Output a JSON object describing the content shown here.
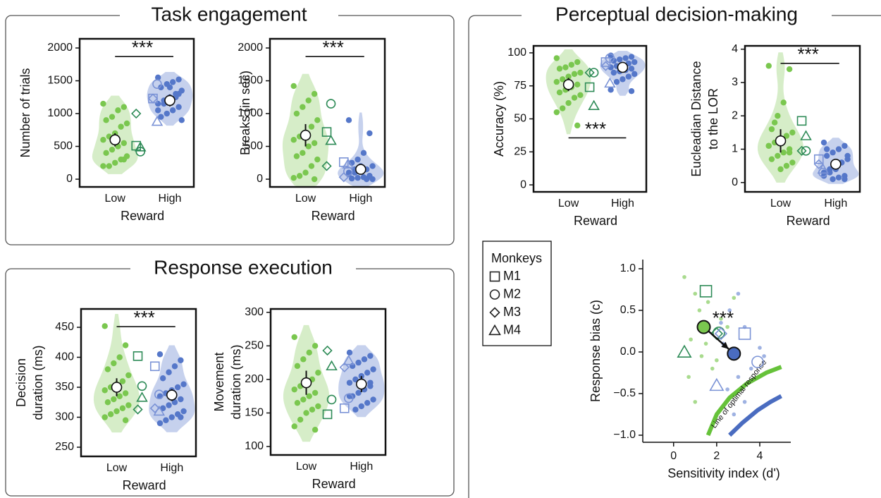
{
  "sections": [
    {
      "title": "Task engagement"
    },
    {
      "title": "Response execution"
    },
    {
      "title": "Perceptual decision-making"
    }
  ],
  "legend": {
    "title": "Monkeys",
    "items": [
      "M1",
      "M2",
      "M3",
      "M4"
    ]
  },
  "chart_data": [
    {
      "type": "violin",
      "ylabel": "Number of trials",
      "xlabel": "Reward",
      "categories": [
        "Low",
        "High"
      ],
      "annotation": "***",
      "annotation_position": "top",
      "ylim": [
        -118,
        2140
      ],
      "yticks": [
        0,
        500,
        1000,
        1500,
        2000
      ],
      "groups": [
        {
          "color": "#7ac74f",
          "fill": "#d6edc8",
          "marker_color": "#2e8b57",
          "points": [
            1150,
            1100,
            1050,
            950,
            900,
            850,
            800,
            700,
            650,
            600,
            550,
            500,
            450,
            400,
            350,
            300,
            250,
            200,
            200,
            300
          ],
          "monkeys": [
            510,
            420,
            1000,
            490
          ],
          "mean": 600,
          "error": 100
        },
        {
          "color": "#5577c9",
          "fill": "#c6d1ed",
          "marker_color": "#7b93d6",
          "points": [
            1550,
            1520,
            1480,
            1450,
            1400,
            1350,
            1300,
            1250,
            1200,
            1150,
            1100,
            1050,
            1000,
            950,
            900,
            1250,
            1400,
            1150,
            1050,
            1300
          ],
          "monkeys": [
            1230,
            1450,
            1230,
            880
          ],
          "mean": 1200,
          "error": 90
        }
      ]
    },
    {
      "type": "violin",
      "ylabel": "Breaks (in sec)",
      "xlabel": "Reward",
      "categories": [
        "Low",
        "High"
      ],
      "annotation": "***",
      "annotation_position": "top",
      "ylim": [
        -118,
        2140
      ],
      "yticks": [
        0,
        500,
        1000,
        1500,
        2000
      ],
      "groups": [
        {
          "color": "#7ac74f",
          "fill": "#d6edc8",
          "marker_color": "#2e8b57",
          "points": [
            1420,
            1300,
            1200,
            1100,
            1000,
            900,
            800,
            700,
            650,
            600,
            550,
            500,
            400,
            350,
            300,
            200,
            100,
            50,
            20,
            0
          ],
          "monkeys": [
            720,
            1150,
            200,
            590
          ],
          "mean": 670,
          "error": 170
        },
        {
          "color": "#5577c9",
          "fill": "#c6d1ed",
          "marker_color": "#7b93d6",
          "points": [
            900,
            700,
            400,
            300,
            250,
            200,
            150,
            120,
            100,
            80,
            50,
            30,
            20,
            10,
            0,
            0,
            200,
            150,
            100,
            50
          ],
          "monkeys": [
            260,
            120,
            30,
            230
          ],
          "mean": 150,
          "error": 60
        }
      ]
    },
    {
      "type": "violin",
      "ylabel": [
        "Decision",
        "duration (ms)"
      ],
      "xlabel": "Reward",
      "categories": [
        "Low",
        "High"
      ],
      "annotation": "***",
      "annotation_position": "top",
      "ylim": [
        234.7,
        480.6
      ],
      "yticks": [
        250,
        300,
        350,
        400,
        450
      ],
      "groups": [
        {
          "color": "#7ac74f",
          "fill": "#d6edc8",
          "marker_color": "#2e8b57",
          "points": [
            452,
            420,
            400,
            390,
            380,
            370,
            360,
            355,
            350,
            345,
            340,
            335,
            330,
            325,
            320,
            315,
            310,
            305,
            300,
            295
          ],
          "monkeys": [
            402,
            352,
            313,
            333
          ],
          "mean": 350,
          "error": 15
        },
        {
          "color": "#5577c9",
          "fill": "#c6d1ed",
          "marker_color": "#7b93d6",
          "points": [
            405,
            395,
            385,
            375,
            365,
            355,
            350,
            345,
            340,
            335,
            330,
            325,
            320,
            315,
            310,
            305,
            300,
            295,
            290,
            300
          ],
          "monkeys": [
            385,
            338,
            315,
            310
          ],
          "mean": 337,
          "error": 10
        }
      ]
    },
    {
      "type": "violin",
      "ylabel": [
        "Movement",
        "duration (ms)"
      ],
      "xlabel": "Reward",
      "categories": [
        "Low",
        "High"
      ],
      "ylim": [
        87.4,
        305
      ],
      "yticks": [
        100,
        150,
        200,
        250,
        300
      ],
      "groups": [
        {
          "color": "#7ac74f",
          "fill": "#d6edc8",
          "marker_color": "#2e8b57",
          "points": [
            263,
            250,
            240,
            230,
            220,
            210,
            200,
            195,
            190,
            185,
            180,
            175,
            170,
            165,
            160,
            155,
            150,
            140,
            130,
            125
          ],
          "monkeys": [
            148,
            170,
            243,
            220
          ],
          "mean": 195,
          "error": 18
        },
        {
          "color": "#5577c9",
          "fill": "#c6d1ed",
          "marker_color": "#7b93d6",
          "points": [
            240,
            235,
            230,
            225,
            220,
            215,
            210,
            205,
            200,
            195,
            190,
            185,
            180,
            175,
            170,
            165,
            160,
            155,
            175,
            195
          ],
          "monkeys": [
            157,
            172,
            218,
            228
          ],
          "mean": 193,
          "error": 12
        }
      ]
    },
    {
      "type": "violin",
      "ylabel": "Accuracy (%)",
      "xlabel": "Reward",
      "categories": [
        "Low",
        "High"
      ],
      "annotation": "***",
      "annotation_position": "bottom",
      "ylim": [
        -5.3,
        105.3
      ],
      "yticks": [
        0,
        25,
        50,
        75,
        100
      ],
      "groups": [
        {
          "color": "#7ac74f",
          "fill": "#d6edc8",
          "marker_color": "#2e8b57",
          "points": [
            96,
            93,
            91,
            89,
            88,
            85,
            84,
            82,
            80,
            78,
            76,
            74,
            72,
            70,
            68,
            66,
            62,
            58,
            55,
            45
          ],
          "monkeys": [
            74,
            85,
            85,
            60
          ],
          "mean": 76,
          "error": 5
        },
        {
          "color": "#5577c9",
          "fill": "#c6d1ed",
          "marker_color": "#7b93d6",
          "points": [
            98,
            97,
            96,
            95,
            94,
            93,
            92,
            91,
            90,
            89,
            88,
            87,
            86,
            85,
            84,
            82,
            80,
            78,
            72,
            71
          ],
          "monkeys": [
            93,
            96,
            90,
            77
          ],
          "mean": 89,
          "error": 3
        }
      ]
    },
    {
      "type": "violin",
      "ylabel": [
        "Eucleadian Distance",
        "to the LOR"
      ],
      "xlabel": "Reward",
      "categories": [
        "Low",
        "High"
      ],
      "annotation": "***",
      "annotation_position": "top",
      "ylim": [
        -0.28,
        4.1
      ],
      "yticks": [
        0,
        1,
        2,
        3,
        4
      ],
      "groups": [
        {
          "color": "#7ac74f",
          "fill": "#d6edc8",
          "marker_color": "#2e8b57",
          "points": [
            3.5,
            3.4,
            2.4,
            2.0,
            1.6,
            1.5,
            1.4,
            1.3,
            1.2,
            1.1,
            1.0,
            0.9,
            0.8,
            0.7,
            0.6,
            0.5,
            0.4,
            1.8,
            1.1,
            0.9
          ],
          "monkeys": [
            1.85,
            0.95,
            0.95,
            1.4
          ],
          "mean": 1.25,
          "error": 0.35
        },
        {
          "color": "#5577c9",
          "fill": "#c6d1ed",
          "marker_color": "#7b93d6",
          "points": [
            1.2,
            1.1,
            1.0,
            0.9,
            0.8,
            0.7,
            0.6,
            0.5,
            0.4,
            0.3,
            0.2,
            0.15,
            0.1,
            1.0,
            0.8,
            0.6,
            0.4,
            0.3,
            0.2,
            0.1
          ],
          "monkeys": [
            0.7,
            0.3,
            0.55,
            0.4
          ],
          "mean": 0.55,
          "error": 0.15
        }
      ]
    },
    {
      "type": "scatter",
      "xlabel": "Sensitivity index (d')",
      "ylabel": "Response bias (c)",
      "annotation": "***",
      "curve_label": "Line of optimal response",
      "xlim": [
        -1.43,
        5.44
      ],
      "xticks": [
        0,
        2,
        4
      ],
      "ylim": [
        -1.085,
        1.11
      ],
      "yticks": [
        {
          "value": 1.0,
          "label": "1.0"
        },
        0.5,
        {
          "value": 0.0,
          "label": "0.0"
        },
        {
          "value": -0.5,
          "label": "−0.5"
        },
        {
          "value": -1.0,
          "label": "−1.0"
        }
      ],
      "groups": [
        {
          "color": "#a9db8e",
          "marker_color": "#2e8b57",
          "mean_color": "#7ac74f",
          "x": [
            0.5,
            1.0,
            1.2,
            1.6,
            2.2,
            2.5,
            0.8,
            1.5,
            2.6,
            0.7,
            1.8,
            1.0,
            2.0,
            2.8,
            1.3
          ],
          "y": [
            0.9,
            0.7,
            0.5,
            0.6,
            0.4,
            0.3,
            0.15,
            0.1,
            0.0,
            -0.3,
            -0.2,
            -0.6,
            -0.1,
            0.65,
            -0.05
          ],
          "monkeys_x": [
            1.5,
            2.1,
            2.0,
            0.5
          ],
          "monkeys_y": [
            0.73,
            0.23,
            0.22,
            0.0
          ],
          "mean_x": 1.4,
          "mean_y": 0.3
        },
        {
          "color": "#9fb2e2",
          "marker_color": "#7b93d6",
          "mean_color": "#4a6cc0",
          "x": [
            3.0,
            2.6,
            3.3,
            2.3,
            3.6,
            4.2,
            3.0,
            2.5,
            3.3,
            2.8,
            4.0,
            2.2
          ],
          "y": [
            0.7,
            0.5,
            0.3,
            0.1,
            -0.2,
            -0.05,
            -0.3,
            -0.45,
            -0.6,
            -0.75,
            0.05,
            0.35
          ],
          "monkeys_x": [
            3.3,
            3.9,
            2.2,
            2.0
          ],
          "monkeys_y": [
            0.22,
            -0.12,
            0.22,
            -0.4
          ],
          "mean_x": 2.8,
          "mean_y": -0.02
        }
      ],
      "curves": [
        {
          "color": "#66c23a",
          "x": [
            1.6,
            2.0,
            2.6,
            3.4,
            4.3,
            5.0
          ],
          "y": [
            -1.0,
            -0.75,
            -0.55,
            -0.38,
            -0.25,
            -0.18
          ]
        },
        {
          "color": "#4a6cc0",
          "x": [
            2.6,
            3.2,
            3.9,
            4.5,
            5.0
          ],
          "y": [
            -1.0,
            -0.85,
            -0.7,
            -0.6,
            -0.53
          ]
        }
      ]
    }
  ]
}
